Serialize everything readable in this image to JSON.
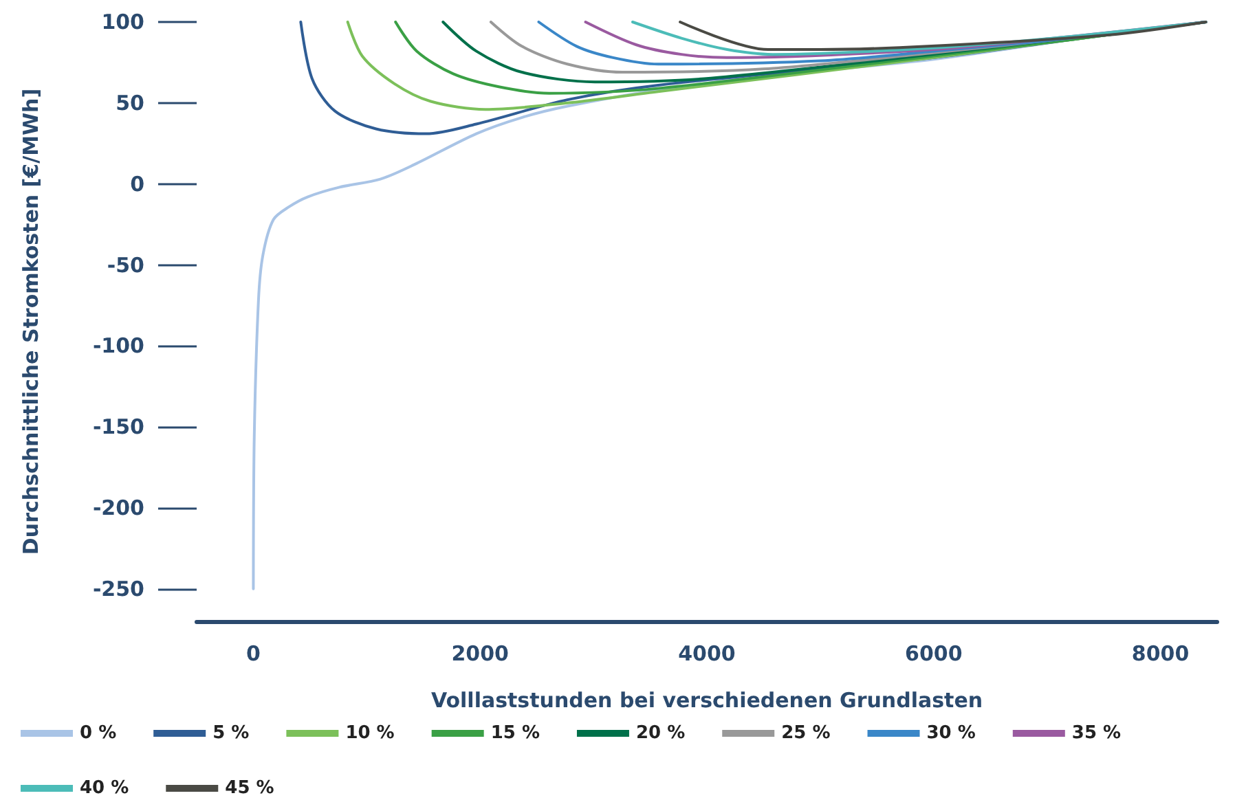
{
  "chart_data": {
    "type": "line",
    "xlabel": "Volllaststunden bei verschiedenen Grundlasten",
    "ylabel": "Durchschnittliche Stromkosten [€/MWh]",
    "xlim": [
      -500,
      8500
    ],
    "xticks": [
      0,
      2000,
      4000,
      6000,
      8000
    ],
    "ylim": [
      -270,
      100
    ],
    "yticks": [
      -250,
      -200,
      -150,
      -100,
      -50,
      0,
      50,
      100
    ],
    "grid": false,
    "legend": "bottom",
    "marker": "none",
    "line_style": "solid",
    "series": [
      {
        "name": "0 %",
        "color": "#a9c4e6",
        "x": [
          0,
          8,
          45,
          84,
          177,
          317,
          478,
          760,
          1120,
          1420,
          1966,
          2366,
          2770,
          3570,
          4580,
          6000,
          7200,
          8400
        ],
        "values": [
          -250,
          -156,
          -72,
          -44,
          -22,
          -14,
          -8,
          -2,
          3,
          12,
          31,
          41,
          48,
          58,
          67,
          77,
          89,
          100
        ]
      },
      {
        "name": "5 %",
        "color": "#2f5d95",
        "x": [
          418,
          518,
          720,
          1082,
          1524,
          1966,
          2770,
          3570,
          6000,
          7200,
          8400
        ],
        "values": [
          100,
          65,
          45,
          34,
          31,
          37,
          52,
          61,
          78,
          89,
          100
        ]
      },
      {
        "name": "10 %",
        "color": "#7cc05a",
        "x": [
          832,
          960,
          1242,
          1565,
          2047,
          2770,
          3570,
          6000,
          7200,
          8400
        ],
        "values": [
          100,
          79,
          62,
          51,
          46,
          50,
          57,
          78,
          89,
          100
        ]
      },
      {
        "name": "15 %",
        "color": "#3aa045",
        "x": [
          1254,
          1441,
          1763,
          2165,
          2610,
          3570,
          6000,
          7200,
          8400
        ],
        "values": [
          100,
          82,
          68,
          60,
          56,
          59,
          79,
          89,
          100
        ]
      },
      {
        "name": "20 %",
        "color": "#00704a",
        "x": [
          1673,
          1966,
          2368,
          3012,
          3976,
          6000,
          7200,
          8400
        ],
        "values": [
          100,
          82,
          69,
          63,
          65,
          80,
          90,
          100
        ]
      },
      {
        "name": "25 %",
        "color": "#999999",
        "x": [
          2095,
          2368,
          2770,
          3253,
          4500,
          6000,
          7200,
          8400
        ],
        "values": [
          100,
          85,
          74,
          69,
          71,
          81,
          90,
          100
        ]
      },
      {
        "name": "30 %",
        "color": "#3a87c8",
        "x": [
          2517,
          2851,
          3173,
          3570,
          5000,
          6000,
          7200,
          8400
        ],
        "values": [
          100,
          85,
          78,
          74,
          76,
          82,
          90,
          100
        ]
      },
      {
        "name": "35 %",
        "color": "#9a5aa0",
        "x": [
          2930,
          3374,
          3776,
          4175,
          6000,
          7200,
          8400
        ],
        "values": [
          100,
          86,
          80,
          78,
          83,
          91,
          100
        ]
      },
      {
        "name": "40 %",
        "color": "#4cbcb8",
        "x": [
          3345,
          3776,
          4178,
          4580,
          6000,
          7200,
          8400
        ],
        "values": [
          100,
          90,
          83,
          80,
          84,
          91,
          100
        ]
      },
      {
        "name": "45 %",
        "color": "#4a4a44",
        "x": [
          3764,
          4540,
          5000,
          5950,
          7550,
          8400
        ],
        "values": [
          100,
          83,
          83,
          85,
          92,
          100
        ]
      }
    ]
  }
}
